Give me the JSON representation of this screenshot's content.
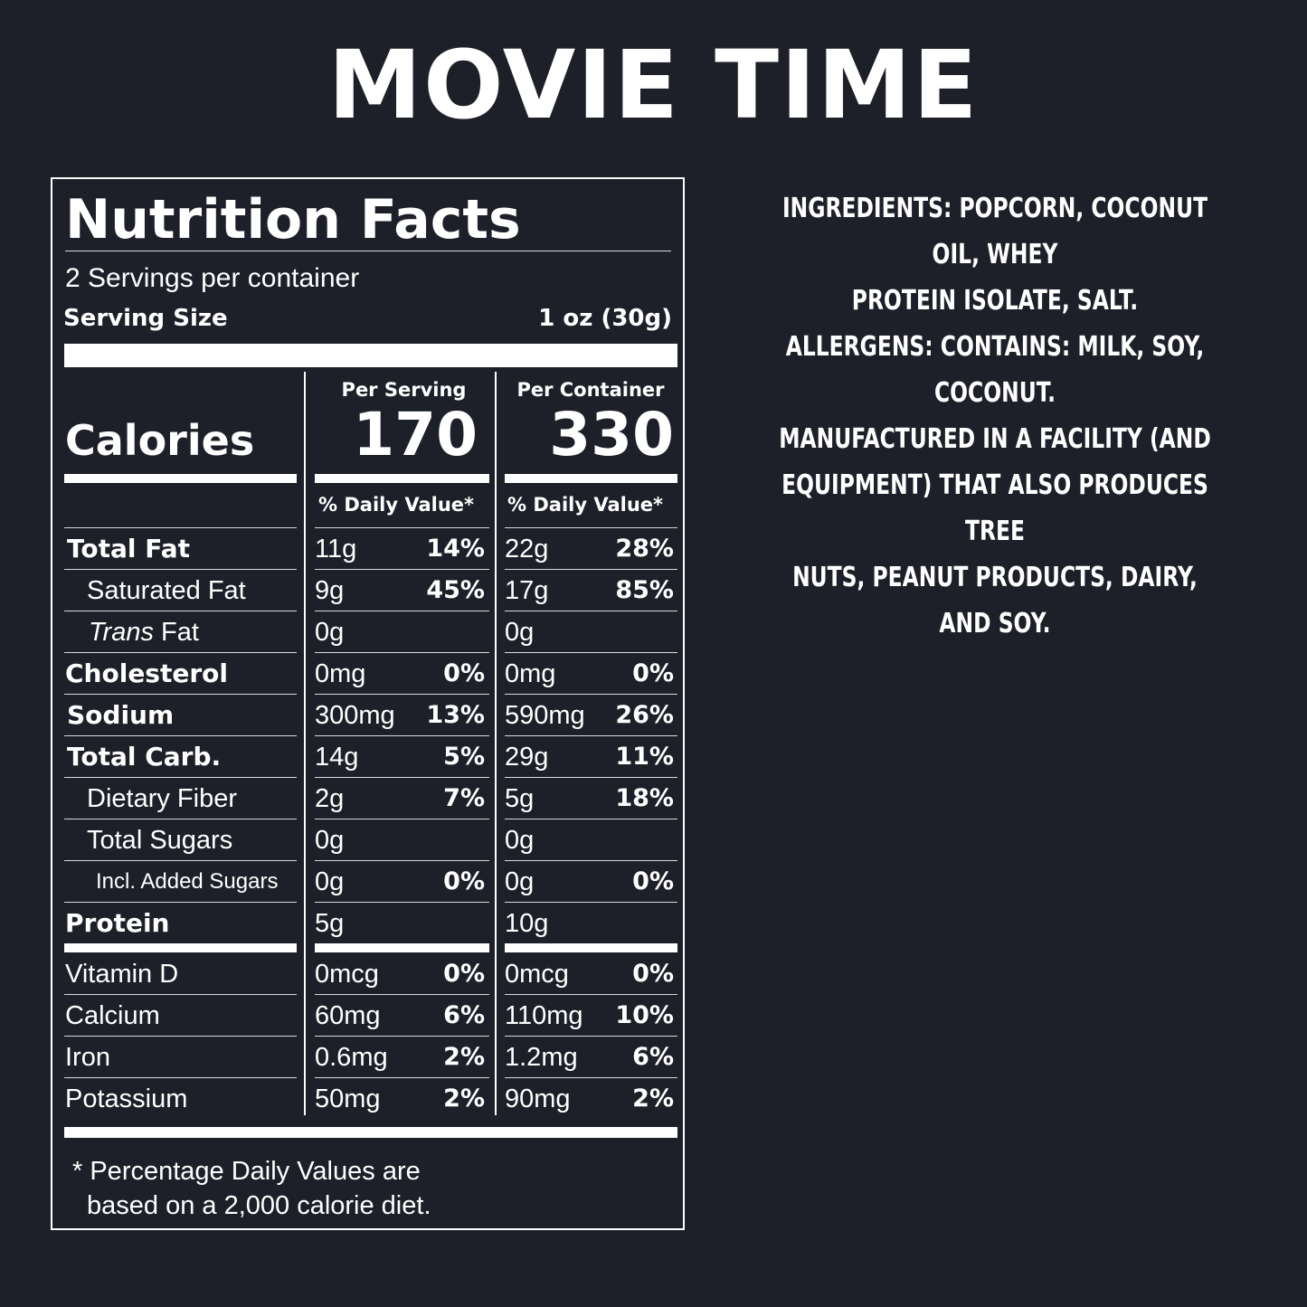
{
  "title": "MOVIE TIME",
  "nutrition": {
    "heading": "Nutrition Facts",
    "servings_per_container": "2 Servings per container",
    "serving_size_label": "Serving Size",
    "serving_size_value": "1 oz (30g)",
    "calories_label": "Calories",
    "per_serving_label": "Per Serving",
    "per_container_label": "Per Container",
    "calories_per_serving": "170",
    "calories_per_container": "330",
    "daily_value_label": "% Daily Value*",
    "rows": [
      {
        "label": "Total Fat",
        "s_amt": "11g",
        "s_pct": "14%",
        "c_amt": "22g",
        "c_pct": "28%"
      },
      {
        "label": "Saturated Fat",
        "s_amt": "9g",
        "s_pct": "45%",
        "c_amt": "17g",
        "c_pct": "85%"
      },
      {
        "label_italic": "Trans",
        "label_rest": " Fat",
        "s_amt": "0g",
        "s_pct": "",
        "c_amt": "0g",
        "c_pct": ""
      },
      {
        "label": "Cholesterol",
        "s_amt": "0mg",
        "s_pct": "0%",
        "c_amt": "0mg",
        "c_pct": "0%"
      },
      {
        "label": "Sodium",
        "s_amt": "300mg",
        "s_pct": "13%",
        "c_amt": "590mg",
        "c_pct": "26%"
      },
      {
        "label": "Total Carb.",
        "s_amt": "14g",
        "s_pct": "5%",
        "c_amt": "29g",
        "c_pct": "11%"
      },
      {
        "label": "Dietary Fiber",
        "s_amt": "2g",
        "s_pct": "7%",
        "c_amt": "5g",
        "c_pct": "18%"
      },
      {
        "label": "Total Sugars",
        "s_amt": "0g",
        "s_pct": "",
        "c_amt": "0g",
        "c_pct": ""
      },
      {
        "label": "Incl. Added Sugars",
        "s_amt": "0g",
        "s_pct": "0%",
        "c_amt": "0g",
        "c_pct": "0%"
      },
      {
        "label": "Protein",
        "s_amt": "5g",
        "s_pct": "",
        "c_amt": "10g",
        "c_pct": ""
      }
    ],
    "vitamins": [
      {
        "label": "Vitamin D",
        "s_amt": "0mcg",
        "s_pct": "0%",
        "c_amt": "0mcg",
        "c_pct": "0%"
      },
      {
        "label": "Calcium",
        "s_amt": "60mg",
        "s_pct": "6%",
        "c_amt": "110mg",
        "c_pct": "10%"
      },
      {
        "label": "Iron",
        "s_amt": "0.6mg",
        "s_pct": "2%",
        "c_amt": "1.2mg",
        "c_pct": "6%"
      },
      {
        "label": "Potassium",
        "s_amt": "50mg",
        "s_pct": "2%",
        "c_amt": "90mg",
        "c_pct": "2%"
      }
    ],
    "footnote_line1": "* Percentage Daily Values are",
    "footnote_line2": "based on a 2,000 calorie diet."
  },
  "info": {
    "ingredients_line1": "INGREDIENTS: POPCORN, COCONUT OIL, WHEY",
    "ingredients_line2": "PROTEIN ISOLATE, SALT.",
    "allergens": "ALLERGENS: CONTAINS: MILK, SOY, COCONUT.",
    "facility_line1": "MANUFACTURED IN A FACILITY (AND",
    "facility_line2": "EQUIPMENT) THAT ALSO PRODUCES TREE",
    "facility_line3": "NUTS, PEANUT PRODUCTS, DAIRY, AND SOY."
  },
  "colors": {
    "background": "#1e2029",
    "text": "#ffffff"
  }
}
